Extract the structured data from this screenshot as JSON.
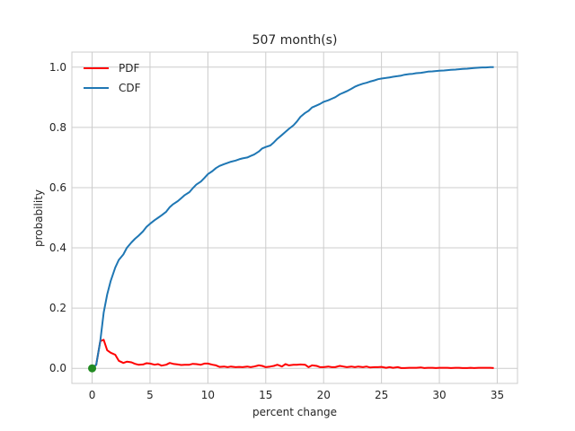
{
  "chart_data": {
    "type": "line",
    "title": "507 month(s)",
    "xlabel": "percent change",
    "ylabel": "probability",
    "xlim": [
      -1.75,
      36.75
    ],
    "ylim": [
      -0.05,
      1.05
    ],
    "xticks": [
      0,
      5,
      10,
      15,
      20,
      25,
      30,
      35
    ],
    "yticks": [
      "0.0",
      "0.2",
      "0.4",
      "0.6",
      "0.8",
      "1.0"
    ],
    "grid": true,
    "legend_position": "top-left",
    "colors": {
      "pdf": "#ff0000",
      "cdf": "#1f77b4",
      "marker": "#228b22",
      "grid": "#cccccc"
    },
    "marker": {
      "x": 0,
      "y": 0
    },
    "series": [
      {
        "name": "PDF",
        "x": [
          0,
          0.35,
          0.7,
          1.0,
          1.3,
          1.6,
          2.0,
          2.3,
          2.7,
          3.0,
          3.4,
          3.7,
          4.0,
          4.4,
          4.7,
          5.0,
          5.4,
          5.7,
          6.0,
          6.4,
          6.7,
          7.0,
          7.4,
          7.7,
          8.0,
          8.4,
          8.7,
          9.0,
          9.4,
          9.7,
          10.0,
          10.4,
          10.7,
          11.0,
          11.4,
          11.7,
          12.0,
          12.4,
          12.7,
          13.0,
          13.4,
          13.7,
          14.0,
          14.4,
          14.7,
          15.0,
          15.4,
          15.7,
          16.0,
          16.4,
          16.7,
          17.0,
          17.4,
          17.7,
          18.0,
          18.4,
          18.7,
          19.0,
          19.4,
          19.7,
          20.0,
          20.4,
          20.7,
          21.0,
          21.4,
          21.7,
          22.0,
          22.4,
          22.7,
          23.0,
          23.4,
          23.7,
          24.0,
          24.4,
          24.7,
          25.0,
          25.4,
          25.7,
          26.0,
          26.4,
          26.7,
          27.0,
          27.4,
          27.7,
          28.0,
          28.4,
          28.7,
          29.0,
          29.4,
          29.7,
          30.0,
          30.4,
          30.7,
          31.0,
          31.4,
          31.7,
          32.0,
          32.4,
          32.7,
          33.0,
          33.4,
          33.7,
          34.0,
          34.4,
          34.7
        ],
        "values": [
          0,
          0.012,
          0.09,
          0.095,
          0.06,
          0.052,
          0.045,
          0.025,
          0.018,
          0.022,
          0.02,
          0.015,
          0.012,
          0.013,
          0.017,
          0.016,
          0.012,
          0.014,
          0.009,
          0.012,
          0.018,
          0.015,
          0.013,
          0.011,
          0.012,
          0.012,
          0.015,
          0.014,
          0.012,
          0.016,
          0.016,
          0.012,
          0.01,
          0.005,
          0.006,
          0.004,
          0.006,
          0.004,
          0.005,
          0.004,
          0.006,
          0.004,
          0.006,
          0.01,
          0.008,
          0.004,
          0.006,
          0.008,
          0.012,
          0.006,
          0.014,
          0.01,
          0.012,
          0.012,
          0.013,
          0.012,
          0.004,
          0.01,
          0.008,
          0.004,
          0.004,
          0.006,
          0.004,
          0.004,
          0.008,
          0.006,
          0.004,
          0.006,
          0.004,
          0.006,
          0.004,
          0.006,
          0.003,
          0.004,
          0.004,
          0.005,
          0.002,
          0.004,
          0.002,
          0.004,
          0.001,
          0.001,
          0.002,
          0.002,
          0.002,
          0.003,
          0.001,
          0.002,
          0.002,
          0.001,
          0.002,
          0.002,
          0.002,
          0.001,
          0.002,
          0.002,
          0.001,
          0.001,
          0.002,
          0.001,
          0.002,
          0.002,
          0.002,
          0.002,
          0.001
        ]
      },
      {
        "name": "CDF",
        "x": [
          0,
          0.35,
          0.7,
          1.0,
          1.3,
          1.6,
          2.0,
          2.3,
          2.7,
          3.0,
          3.4,
          3.7,
          4.0,
          4.4,
          4.7,
          5.0,
          5.4,
          5.7,
          6.0,
          6.4,
          6.7,
          7.0,
          7.4,
          7.7,
          8.0,
          8.4,
          8.7,
          9.0,
          9.4,
          9.7,
          10.0,
          10.4,
          10.7,
          11.0,
          11.4,
          11.7,
          12.0,
          12.4,
          12.7,
          13.0,
          13.4,
          13.7,
          14.0,
          14.4,
          14.7,
          15.0,
          15.4,
          15.7,
          16.0,
          16.4,
          16.7,
          17.0,
          17.4,
          17.7,
          18.0,
          18.4,
          18.7,
          19.0,
          19.4,
          19.7,
          20.0,
          20.4,
          20.7,
          21.0,
          21.4,
          21.7,
          22.0,
          22.4,
          22.7,
          23.0,
          23.4,
          23.7,
          24.0,
          24.4,
          24.7,
          25.0,
          25.4,
          25.7,
          26.0,
          26.4,
          26.7,
          27.0,
          27.4,
          27.7,
          28.0,
          28.4,
          28.7,
          29.0,
          29.4,
          29.7,
          30.0,
          30.4,
          30.7,
          31.0,
          31.4,
          31.7,
          32.0,
          32.4,
          32.7,
          33.0,
          33.4,
          33.7,
          34.0,
          34.4,
          34.7
        ],
        "values": [
          0,
          0.012,
          0.09,
          0.185,
          0.245,
          0.29,
          0.335,
          0.36,
          0.378,
          0.4,
          0.418,
          0.43,
          0.44,
          0.455,
          0.47,
          0.48,
          0.492,
          0.5,
          0.508,
          0.52,
          0.535,
          0.545,
          0.555,
          0.565,
          0.575,
          0.585,
          0.598,
          0.61,
          0.62,
          0.632,
          0.645,
          0.655,
          0.665,
          0.672,
          0.678,
          0.682,
          0.686,
          0.69,
          0.694,
          0.697,
          0.7,
          0.705,
          0.71,
          0.72,
          0.73,
          0.735,
          0.74,
          0.75,
          0.762,
          0.775,
          0.785,
          0.795,
          0.807,
          0.82,
          0.835,
          0.848,
          0.855,
          0.866,
          0.873,
          0.878,
          0.885,
          0.89,
          0.895,
          0.9,
          0.91,
          0.915,
          0.92,
          0.928,
          0.935,
          0.94,
          0.945,
          0.948,
          0.952,
          0.956,
          0.96,
          0.962,
          0.964,
          0.966,
          0.968,
          0.97,
          0.972,
          0.975,
          0.977,
          0.978,
          0.98,
          0.981,
          0.983,
          0.985,
          0.986,
          0.987,
          0.988,
          0.989,
          0.99,
          0.991,
          0.992,
          0.993,
          0.994,
          0.995,
          0.996,
          0.997,
          0.998,
          0.999,
          0.999,
          1.0,
          1.0
        ]
      }
    ]
  }
}
